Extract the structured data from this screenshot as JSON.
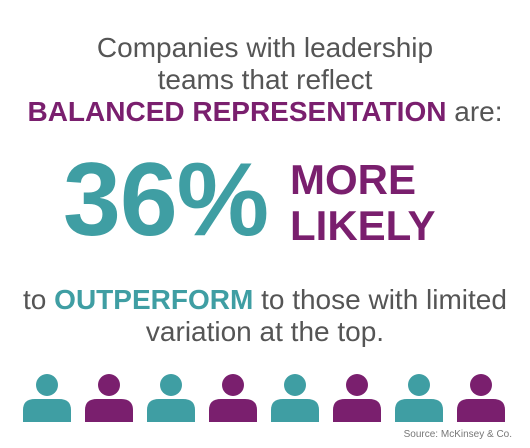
{
  "heading": {
    "line1": "Companies with leadership",
    "line2": "teams that reflect",
    "highlight": "BALANCED REPRESENTATION",
    "suffix": "are:"
  },
  "stat": {
    "value": "36%",
    "label_line1": "MORE",
    "label_line2": "LIKELY"
  },
  "subtext": {
    "prefix": "to",
    "highlight": "OUTPERFORM",
    "rest": "to those with limited",
    "line2": "variation at  the top."
  },
  "people": {
    "colors": [
      "#3f9ea3",
      "#7a1f6e",
      "#3f9ea3",
      "#7a1f6e",
      "#3f9ea3",
      "#7a1f6e",
      "#3f9ea3",
      "#7a1f6e"
    ],
    "icon": "person-icon"
  },
  "source": "Source: McKinsey & Co.",
  "colors": {
    "teal": "#3f9ea3",
    "purple": "#7a1f6e",
    "text": "#555555"
  }
}
